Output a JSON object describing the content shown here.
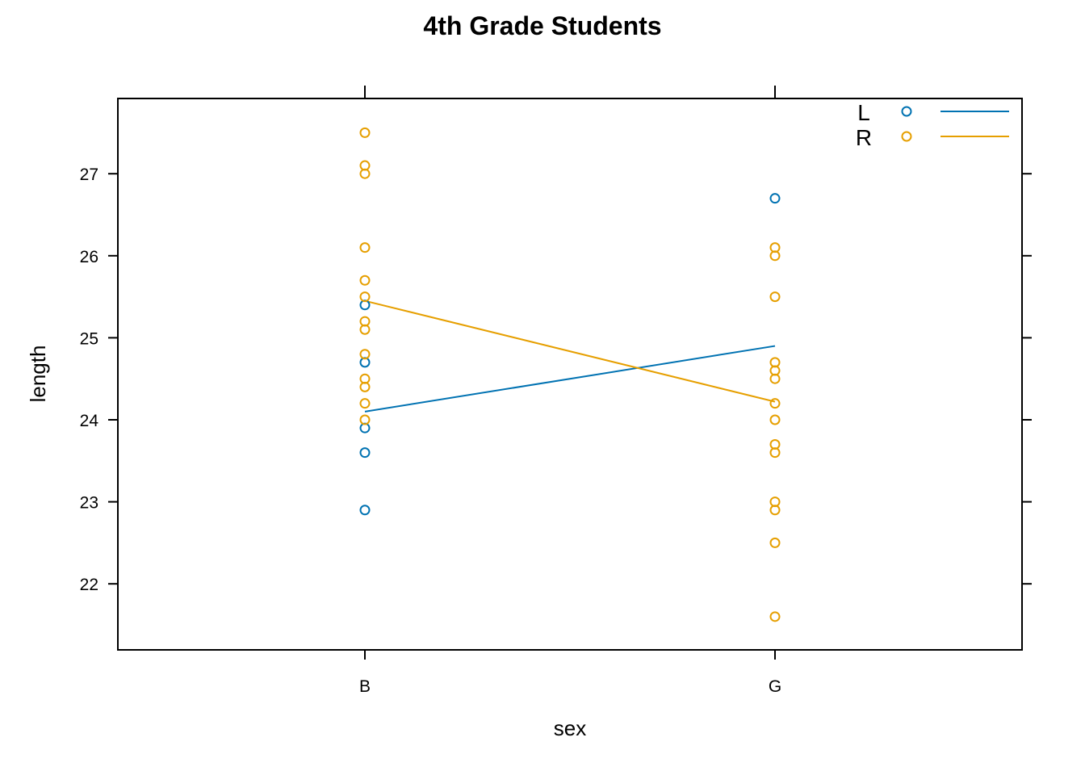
{
  "chart_data": {
    "type": "scatter",
    "title": "4th Grade Students",
    "xlabel": "sex",
    "ylabel": "length",
    "categories": [
      "B",
      "G"
    ],
    "ylim": [
      21.2,
      27.9
    ],
    "yticks": [
      22,
      23,
      24,
      25,
      26,
      27
    ],
    "grid": false,
    "legend_position": "top-right",
    "series": [
      {
        "name": "L",
        "color": "#0072B2",
        "points": [
          {
            "x": "B",
            "y": 25.4
          },
          {
            "x": "B",
            "y": 24.7
          },
          {
            "x": "B",
            "y": 23.9
          },
          {
            "x": "B",
            "y": 23.6
          },
          {
            "x": "B",
            "y": 22.9
          },
          {
            "x": "G",
            "y": 26.7
          }
        ],
        "line": [
          {
            "x": "B",
            "y": 24.1
          },
          {
            "x": "G",
            "y": 24.9
          }
        ]
      },
      {
        "name": "R",
        "color": "#E69F00",
        "points": [
          {
            "x": "B",
            "y": 27.5
          },
          {
            "x": "B",
            "y": 27.1
          },
          {
            "x": "B",
            "y": 27.0
          },
          {
            "x": "B",
            "y": 26.1
          },
          {
            "x": "B",
            "y": 25.7
          },
          {
            "x": "B",
            "y": 25.5
          },
          {
            "x": "B",
            "y": 25.2
          },
          {
            "x": "B",
            "y": 25.1
          },
          {
            "x": "B",
            "y": 24.8
          },
          {
            "x": "B",
            "y": 24.5
          },
          {
            "x": "B",
            "y": 24.4
          },
          {
            "x": "B",
            "y": 24.2
          },
          {
            "x": "B",
            "y": 24.0
          },
          {
            "x": "G",
            "y": 26.1
          },
          {
            "x": "G",
            "y": 26.0
          },
          {
            "x": "G",
            "y": 25.5
          },
          {
            "x": "G",
            "y": 24.7
          },
          {
            "x": "G",
            "y": 24.6
          },
          {
            "x": "G",
            "y": 24.5
          },
          {
            "x": "G",
            "y": 24.2
          },
          {
            "x": "G",
            "y": 24.0
          },
          {
            "x": "G",
            "y": 23.7
          },
          {
            "x": "G",
            "y": 23.6
          },
          {
            "x": "G",
            "y": 23.0
          },
          {
            "x": "G",
            "y": 22.9
          },
          {
            "x": "G",
            "y": 22.5
          },
          {
            "x": "G",
            "y": 21.6
          }
        ],
        "line": [
          {
            "x": "B",
            "y": 25.45
          },
          {
            "x": "G",
            "y": 24.22
          }
        ]
      }
    ]
  }
}
